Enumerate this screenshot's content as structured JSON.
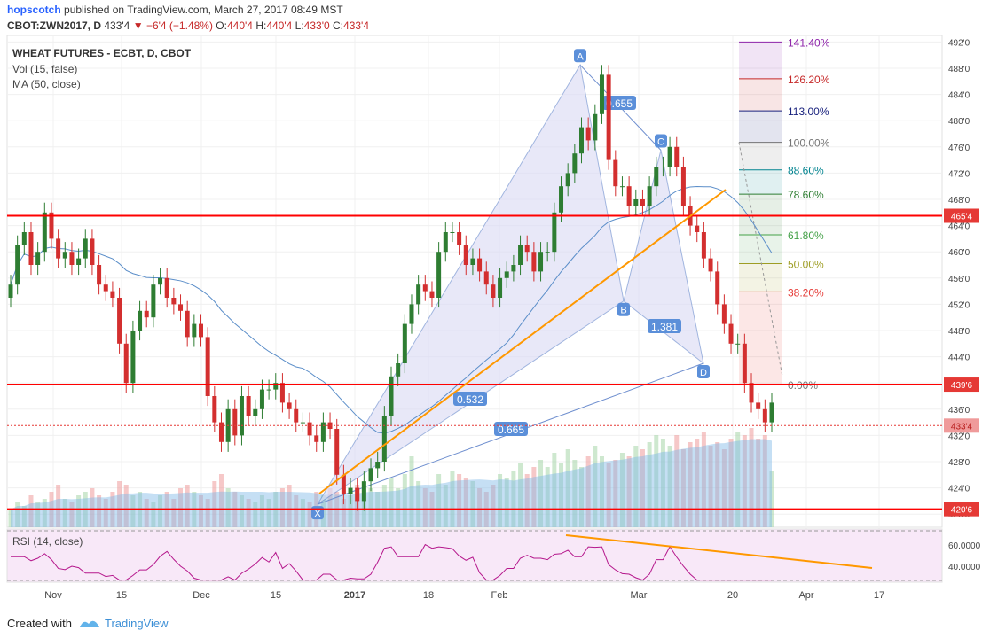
{
  "header": {
    "author": "hopscotch",
    "published_text": "published on TradingView.com, March 27, 2017 08:49 MST",
    "symbol_line": "CBOT:ZWN2017, D",
    "last_price": "433'4",
    "change": "−6'4 (−1.48%)",
    "o_label": "O:",
    "o_value": "440'4",
    "h_label": "H:",
    "h_value": "440'4",
    "l_label": "L:",
    "l_value": "433'0",
    "c_label": "C:",
    "c_value": "433'4"
  },
  "legend": {
    "title": "WHEAT FUTURES - ECBT, D, CBOT",
    "vol": "Vol (15, false)",
    "ma": "MA (50, close)",
    "rsi": "RSI (14, close)"
  },
  "footer": {
    "created_with": "Created with",
    "brand": "TradingView"
  },
  "colors": {
    "up": "#2e7d32",
    "down": "#d32f2f",
    "level_line": "#ff0000",
    "trendline": "#ff9800",
    "ma": "#5b8ec9",
    "pattern_fill": "#dcdcf5",
    "pattern_line": "#6f8fcf",
    "rsi_line": "#b5178c"
  },
  "chart_data": {
    "type": "candlestick",
    "symbol": "CBOT:ZWN2017",
    "interval": "D",
    "y_axis": {
      "range": [
        418,
        493
      ],
      "ticks": [
        "420'0",
        "424'0",
        "428'0",
        "432'0",
        "436'0",
        "440'0",
        "444'0",
        "448'0",
        "452'0",
        "456'0",
        "460'0",
        "464'0",
        "468'0",
        "472'0",
        "476'0",
        "480'0",
        "484'0",
        "488'0",
        "492'0"
      ]
    },
    "x_axis": {
      "ticks": [
        "Nov",
        "15",
        "Dec",
        "15",
        "2017",
        "18",
        "Feb",
        "Mar",
        "20",
        "Apr",
        "17"
      ],
      "bold_ticks": [
        "2017"
      ]
    },
    "candles_close": [
      455,
      461,
      463,
      458,
      460,
      466,
      462,
      459,
      460,
      458,
      459,
      462,
      458,
      455,
      454,
      453,
      446,
      440,
      448,
      451,
      450,
      455,
      456,
      453,
      452,
      451,
      447,
      449,
      447,
      438,
      434,
      431,
      436,
      432,
      438,
      435,
      436,
      439,
      439,
      440,
      437,
      436,
      434,
      434,
      432,
      431,
      434,
      433,
      426,
      423,
      424,
      422,
      425,
      427,
      428,
      435,
      441,
      443,
      449,
      452,
      455,
      454,
      453,
      460,
      463,
      463,
      461,
      458,
      459,
      457,
      455,
      453,
      456,
      457,
      458,
      461,
      460,
      457,
      460,
      460,
      466,
      470,
      472,
      475,
      479,
      477,
      481,
      487,
      474,
      470,
      470,
      467,
      468,
      467,
      470,
      473,
      473,
      476,
      473,
      467,
      464,
      463,
      459,
      457,
      452,
      449,
      446,
      446,
      440,
      437,
      436,
      434,
      437
    ],
    "price_levels": [
      {
        "label": "465'4",
        "value": 465.5
      },
      {
        "label": "439'6",
        "value": 439.75
      },
      {
        "label": "420'6",
        "value": 420.75
      }
    ],
    "last_price_label": "433'4",
    "harmonic_pattern": {
      "points": [
        {
          "label": "X",
          "value": 421.5
        },
        {
          "label": "A",
          "value": 488.5
        },
        {
          "label": "B",
          "value": 452.5
        },
        {
          "label": "C",
          "value": 475.5
        },
        {
          "label": "D",
          "value": 443.0
        }
      ],
      "ratios": [
        "0.655",
        "1.381",
        "0.532",
        "0.665"
      ]
    },
    "fib_levels": [
      {
        "label": "141.40%",
        "value": 492.0,
        "color": "#8e24aa"
      },
      {
        "label": "126.20%",
        "value": 486.4,
        "color": "#c62828"
      },
      {
        "label": "113.00%",
        "value": 481.5,
        "color": "#1a237e"
      },
      {
        "label": "100.00%",
        "value": 476.7,
        "color": "#757575"
      },
      {
        "label": "88.60%",
        "value": 472.5,
        "color": "#00838f"
      },
      {
        "label": "78.60%",
        "value": 468.8,
        "color": "#2e7d32"
      },
      {
        "label": "61.80%",
        "value": 462.6,
        "color": "#43a047"
      },
      {
        "label": "50.00%",
        "value": 458.2,
        "color": "#9e9d24"
      },
      {
        "label": "38.20%",
        "value": 453.9,
        "color": "#e53935"
      },
      {
        "label": "0.00%",
        "value": 439.75,
        "color": "#757575"
      }
    ],
    "rsi": {
      "levels": [
        70,
        30
      ],
      "ticks": [
        "60.0000",
        "40.0000"
      ],
      "range": [
        25,
        75
      ]
    },
    "volume_max": 3000,
    "volume": [
      500,
      700,
      600,
      900,
      700,
      800,
      1000,
      1200,
      800,
      700,
      900,
      1000,
      1100,
      900,
      800,
      1000,
      1300,
      1200,
      900,
      1000,
      800,
      700,
      900,
      1000,
      800,
      1100,
      1200,
      1000,
      900,
      800,
      1300,
      1500,
      1100,
      1000,
      900,
      800,
      700,
      900,
      800,
      1000,
      1100,
      1200,
      900,
      800,
      700,
      1000,
      900,
      1100,
      1000,
      800,
      900,
      1200,
      1300,
      1100,
      1000,
      1200,
      1400,
      1100,
      1500,
      2000,
      1300,
      1100,
      1000,
      1500,
      1200,
      1600,
      1500,
      1400,
      1300,
      1100,
      1000,
      1200,
      1500,
      1400,
      1600,
      1800,
      1500,
      1700,
      1900,
      1700,
      2100,
      1800,
      2200,
      1900,
      1700,
      2000,
      2300,
      2000,
      1800,
      1900,
      2100,
      2000,
      2300,
      2200,
      2400,
      2600,
      2500,
      2300,
      2600,
      2200,
      2400,
      2500,
      2700,
      2300,
      2400,
      2200,
      2500,
      2700,
      2600,
      2800,
      2500,
      2600,
      1600
    ]
  }
}
